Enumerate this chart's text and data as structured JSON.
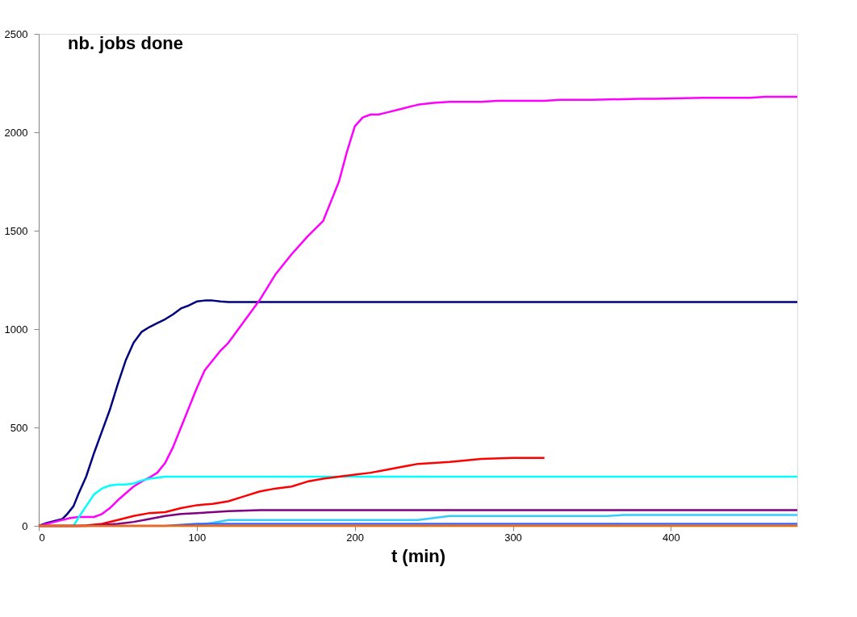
{
  "chart_data": {
    "type": "line",
    "ylabel": "nb. jobs done",
    "xlabel": "t (min)",
    "xlim": [
      0,
      480
    ],
    "ylim": [
      0,
      2500
    ],
    "xticks": [
      0,
      100,
      200,
      300,
      400
    ],
    "yticks": [
      0,
      500,
      1000,
      1500,
      2000,
      2500
    ],
    "grid": false,
    "marker": "none",
    "line_style": "solid",
    "series": [
      {
        "color": "#000080",
        "x": [
          0,
          5,
          10,
          15,
          18,
          22,
          25,
          30,
          35,
          40,
          45,
          50,
          55,
          60,
          65,
          70,
          75,
          80,
          85,
          90,
          95,
          100,
          105,
          110,
          115,
          120,
          130,
          150,
          200,
          300,
          400,
          480
        ],
        "values": [
          0,
          15,
          25,
          35,
          60,
          100,
          160,
          250,
          370,
          480,
          590,
          720,
          840,
          930,
          985,
          1010,
          1030,
          1050,
          1075,
          1105,
          1120,
          1140,
          1145,
          1145,
          1140,
          1137,
          1137,
          1137,
          1137,
          1137,
          1137,
          1137
        ]
      },
      {
        "color": "#ff00ff",
        "x": [
          0,
          10,
          20,
          25,
          30,
          35,
          40,
          45,
          50,
          55,
          60,
          65,
          70,
          75,
          80,
          85,
          90,
          95,
          100,
          105,
          110,
          115,
          120,
          130,
          140,
          150,
          160,
          170,
          180,
          185,
          190,
          195,
          200,
          205,
          210,
          215,
          220,
          230,
          240,
          250,
          260,
          280,
          290,
          300,
          320,
          330,
          350,
          380,
          390,
          420,
          450,
          460,
          480
        ],
        "values": [
          0,
          20,
          40,
          45,
          45,
          45,
          60,
          90,
          130,
          165,
          200,
          225,
          245,
          270,
          320,
          400,
          500,
          600,
          700,
          790,
          840,
          890,
          930,
          1040,
          1150,
          1280,
          1380,
          1470,
          1550,
          1650,
          1750,
          1900,
          2030,
          2075,
          2090,
          2090,
          2100,
          2120,
          2140,
          2150,
          2155,
          2155,
          2160,
          2160,
          2160,
          2165,
          2165,
          2170,
          2170,
          2175,
          2175,
          2180,
          2180
        ]
      },
      {
        "color": "#00ffff",
        "x": [
          0,
          22,
          25,
          30,
          35,
          40,
          45,
          50,
          55,
          60,
          65,
          70,
          75,
          80,
          100,
          200,
          300,
          400,
          480
        ],
        "values": [
          0,
          0,
          40,
          100,
          160,
          190,
          205,
          210,
          210,
          215,
          230,
          240,
          245,
          250,
          250,
          250,
          250,
          250,
          250
        ]
      },
      {
        "color": "#ff0000",
        "x": [
          0,
          25,
          30,
          40,
          50,
          60,
          70,
          80,
          90,
          100,
          110,
          120,
          130,
          140,
          150,
          160,
          170,
          180,
          190,
          200,
          210,
          220,
          230,
          240,
          260,
          280,
          300,
          320
        ],
        "values": [
          0,
          0,
          2,
          10,
          30,
          50,
          65,
          70,
          90,
          105,
          112,
          125,
          150,
          175,
          190,
          200,
          225,
          240,
          250,
          260,
          270,
          285,
          300,
          315,
          325,
          340,
          345,
          345
        ]
      },
      {
        "color": "#800080",
        "x": [
          0,
          30,
          40,
          50,
          60,
          70,
          80,
          90,
          100,
          110,
          120,
          140,
          480
        ],
        "values": [
          0,
          0,
          5,
          10,
          20,
          35,
          50,
          60,
          65,
          70,
          75,
          80,
          80
        ]
      },
      {
        "color": "#33ccff",
        "x": [
          100,
          110,
          120,
          140,
          160,
          200,
          240,
          260,
          300,
          360,
          370,
          400,
          480
        ],
        "values": [
          5,
          15,
          30,
          30,
          30,
          30,
          30,
          50,
          50,
          50,
          55,
          55,
          55
        ]
      },
      {
        "color": "#3366ff",
        "x": [
          0,
          80,
          100,
          110,
          480
        ],
        "values": [
          0,
          0,
          10,
          10,
          10
        ]
      },
      {
        "color": "#ff6600",
        "x": [
          0,
          480
        ],
        "values": [
          0,
          0
        ]
      }
    ]
  }
}
